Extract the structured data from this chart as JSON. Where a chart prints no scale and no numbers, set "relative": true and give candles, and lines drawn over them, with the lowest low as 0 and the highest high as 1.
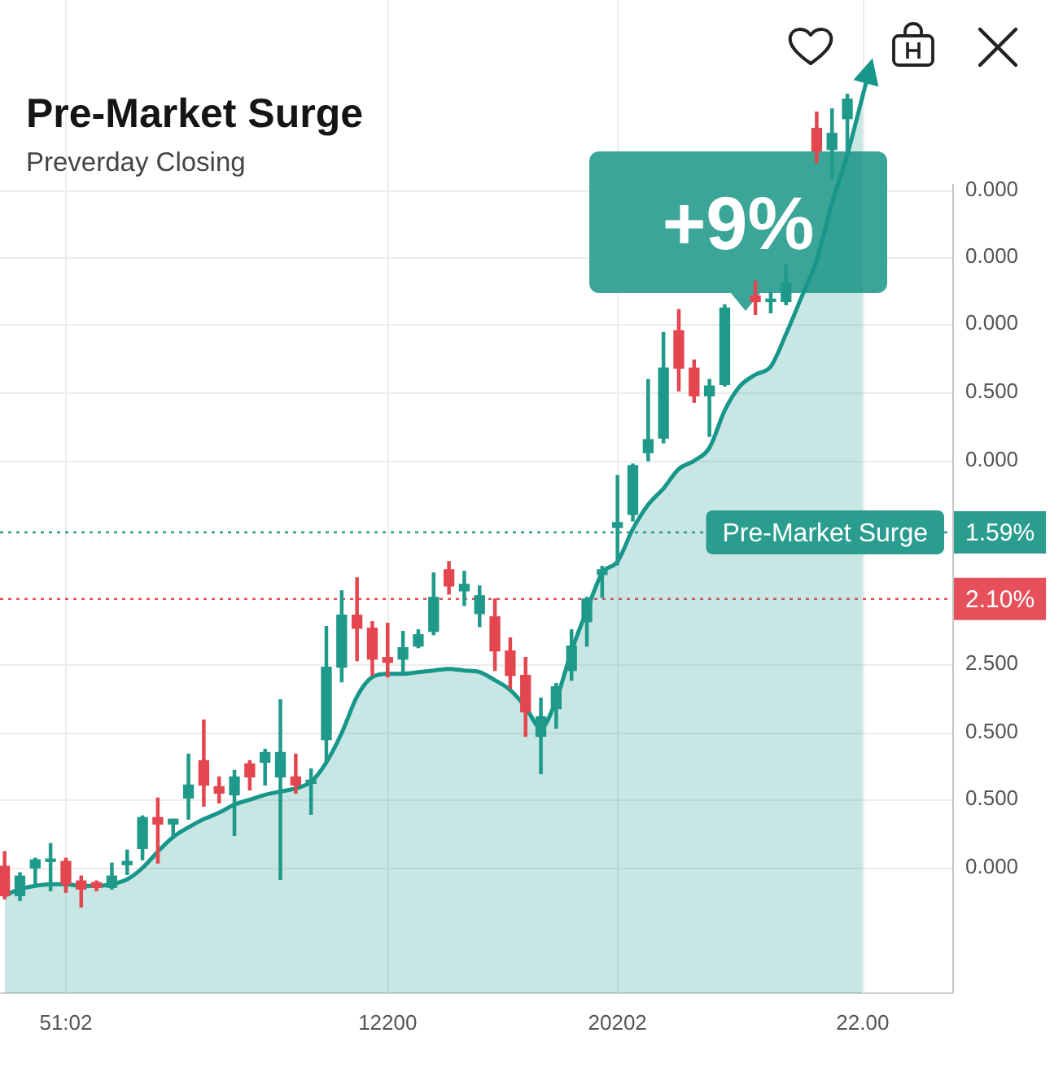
{
  "chart_data": {
    "type": "candlestick",
    "title": "Pre-Market Surge",
    "subtitle": "Preverday Closing",
    "relative": true,
    "categories": [
      null,
      null,
      null,
      null,
      "51:02",
      null,
      null,
      null,
      null,
      null,
      null,
      null,
      null,
      null,
      null,
      null,
      null,
      null,
      null,
      null,
      null,
      null,
      null,
      null,
      null,
      "12200",
      null,
      null,
      null,
      null,
      null,
      null,
      null,
      null,
      null,
      null,
      null,
      null,
      null,
      null,
      "20202",
      null,
      null,
      null,
      null,
      null,
      null,
      null,
      null,
      null,
      null,
      null,
      null,
      null,
      null,
      null,
      "22.00"
    ],
    "ohlc": [
      [
        0.05,
        0.068,
        0.01,
        0.014
      ],
      [
        0.014,
        0.042,
        0.008,
        0.038
      ],
      [
        0.048,
        0.06,
        0.028,
        0.058
      ],
      [
        0.056,
        0.078,
        0.02,
        0.058
      ],
      [
        0.056,
        0.06,
        0.018,
        0.028
      ],
      [
        0.032,
        0.038,
        0,
        0.022
      ],
      [
        0.03,
        0.032,
        0.02,
        0.024
      ],
      [
        0.024,
        0.054,
        0.022,
        0.038
      ],
      [
        0.052,
        0.07,
        0.04,
        0.056
      ],
      [
        0.072,
        0.112,
        0.058,
        0.11
      ],
      [
        0.11,
        0.134,
        0.054,
        0.102
      ],
      [
        0.102,
        0.108,
        0.086,
        0.108
      ],
      [
        0.134,
        0.188,
        0.108,
        0.15
      ],
      [
        0.18,
        0.23,
        0.124,
        0.15
      ],
      [
        0.148,
        0.16,
        0.128,
        0.14
      ],
      [
        0.138,
        0.168,
        0.088,
        0.16
      ],
      [
        0.176,
        0.18,
        0.144,
        0.16
      ],
      [
        0.178,
        0.194,
        0.15,
        0.19
      ],
      [
        0.16,
        0.255,
        0.034,
        0.19
      ],
      [
        0.16,
        0.188,
        0.14,
        0.15
      ],
      [
        0.152,
        0.17,
        0.114,
        0.156
      ],
      [
        0.206,
        0.345,
        0.18,
        0.295
      ],
      [
        0.295,
        0.389,
        0.277,
        0.359
      ],
      [
        0.359,
        0.405,
        0.303,
        0.343
      ],
      [
        0.343,
        0.351,
        0.285,
        0.305
      ],
      [
        0.307,
        0.349,
        0.283,
        0.301
      ],
      [
        0.305,
        0.339,
        0.289,
        0.319
      ],
      [
        0.321,
        0.341,
        0.319,
        0.335
      ],
      [
        0.339,
        0.411,
        0.335,
        0.381
      ],
      [
        0.415,
        0.425,
        0.385,
        0.395
      ],
      [
        0.389,
        0.413,
        0.371,
        0.397
      ],
      [
        0.361,
        0.395,
        0.345,
        0.383
      ],
      [
        0.357,
        0.379,
        0.291,
        0.315
      ],
      [
        0.315,
        0.331,
        0.269,
        0.285
      ],
      [
        0.285,
        0.307,
        0.21,
        0.24
      ],
      [
        0.21,
        0.257,
        0.164,
        0.234
      ],
      [
        0.244,
        0.275,
        0.22,
        0.271
      ],
      [
        0.291,
        0.341,
        0.279,
        0.321
      ],
      [
        0.351,
        0.381,
        0.321,
        0.379
      ],
      [
        0.409,
        0.419,
        0.381,
        0.415
      ],
      [
        0.467,
        0.531,
        0.421,
        0.473
      ],
      [
        0.483,
        0.545,
        0.475,
        0.543
      ],
      [
        0.559,
        0.649,
        0.549,
        0.575
      ],
      [
        0.577,
        0.707,
        0.571,
        0.663
      ],
      [
        0.709,
        0.735,
        0.635,
        0.663
      ],
      [
        0.663,
        0.673,
        0.621,
        0.629
      ],
      [
        0.629,
        0.649,
        0.579,
        0.641
      ],
      [
        0.643,
        0.741,
        0.641,
        0.737
      ],
      null,
      [
        0.752,
        0.77,
        0.729,
        0.745
      ],
      [
        0.745,
        0.756,
        0.731,
        0.747
      ],
      [
        0.745,
        0.79,
        0.741,
        0.768
      ],
      null,
      [
        0.958,
        0.978,
        0.916,
        0.93
      ],
      [
        0.932,
        0.982,
        0.896,
        0.952
      ],
      [
        0.97,
        1.0,
        0.926,
        0.994
      ],
      null
    ],
    "colors": [
      "#e4464f",
      "#1f9a8a",
      "#1f9a8a",
      "#1f9a8a",
      "#e4464f",
      "#e4464f",
      "#e4464f",
      "#1f9a8a",
      "#1f9a8a",
      "#1f9a8a",
      "#e4464f",
      "#1f9a8a",
      "#1f9a8a",
      "#e4464f",
      "#e4464f",
      "#1f9a8a",
      "#e4464f",
      "#1f9a8a",
      "#1f9a8a",
      "#e4464f",
      "#1f9a8a",
      "#1f9a8a",
      "#1f9a8a",
      "#e4464f",
      "#e4464f",
      "#e4464f",
      "#1f9a8a",
      "#1f9a8a",
      "#1f9a8a",
      "#e4464f",
      "#1f9a8a",
      "#1f9a8a",
      "#e4464f",
      "#e4464f",
      "#e4464f",
      "#1f9a8a",
      "#1f9a8a",
      "#1f9a8a",
      "#1f9a8a",
      "#1f9a8a",
      "#1f9a8a",
      "#1f9a8a",
      "#1f9a8a",
      "#1f9a8a",
      "#e4464f",
      "#e4464f",
      "#1f9a8a",
      "#1f9a8a",
      null,
      "#e4464f",
      "#1f9a8a",
      "#1f9a8a",
      null,
      "#e4464f",
      "#1f9a8a",
      "#1f9a8a",
      null
    ],
    "series": [
      {
        "type": "area",
        "color": "#17968a",
        "values": [
          0.014,
          0.022,
          0.026,
          0.028,
          0.028,
          0.026,
          0.026,
          0.028,
          0.034,
          0.048,
          0.068,
          0.086,
          0.098,
          0.108,
          0.116,
          0.126,
          0.132,
          0.138,
          0.142,
          0.146,
          0.154,
          0.178,
          0.214,
          0.259,
          0.283,
          0.287,
          0.287,
          0.289,
          0.291,
          0.293,
          0.291,
          0.289,
          0.279,
          0.267,
          0.246,
          0.22,
          0.255,
          0.315,
          0.365,
          0.411,
          0.425,
          0.465,
          0.495,
          0.515,
          0.539,
          0.549,
          0.565,
          0.611,
          0.641,
          0.655,
          0.665,
          0.705,
          0.75,
          0.796,
          0.866,
          0.926,
          0.998
        ]
      }
    ],
    "ref_lines": [
      {
        "axis": "y",
        "value": 0.461,
        "color": "#2a9d8f",
        "line_style": "dotted"
      },
      {
        "axis": "y",
        "value": 0.379,
        "color": "#e5505a",
        "line_style": "dotted"
      }
    ],
    "annotations": [
      "+9%",
      {
        "text": "Pre-Market Surge",
        "y": 0.461
      },
      "1.59%",
      "2.10%",
      "0.000",
      "0.000",
      "0.000",
      "0.500",
      "0.000",
      "2.500",
      "0.500",
      "0.500",
      "0.000"
    ],
    "grid": true
  }
}
